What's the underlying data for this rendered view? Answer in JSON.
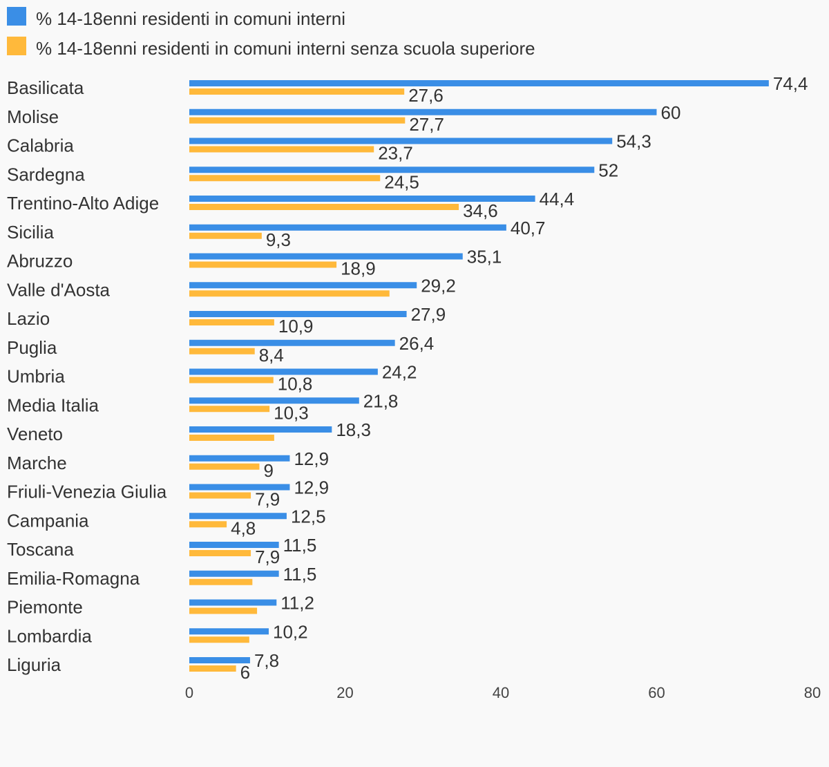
{
  "chart_data": {
    "type": "bar",
    "orientation": "horizontal",
    "xlim": [
      0,
      80
    ],
    "x_ticks": [
      "0",
      "20",
      "40",
      "60",
      "80"
    ],
    "grid": false,
    "legend_position": "top-left",
    "categories": [
      "Basilicata",
      "Molise",
      "Calabria",
      "Sardegna",
      "Trentino-Alto Adige",
      "Sicilia",
      "Abruzzo",
      "Valle d'Aosta",
      "Lazio",
      "Puglia",
      "Umbria",
      "Media Italia",
      "Veneto",
      "Marche",
      "Friuli-Venezia Giulia",
      "Campania",
      "Toscana",
      "Emilia-Romagna",
      "Piemonte",
      "Lombardia",
      "Liguria"
    ],
    "series": [
      {
        "name": "% 14-18enni residenti in comuni interni",
        "color": "#3a8ee6",
        "values": [
          74.4,
          60,
          54.3,
          52,
          44.4,
          40.7,
          35.1,
          29.2,
          27.9,
          26.4,
          24.2,
          21.8,
          18.3,
          12.9,
          12.9,
          12.5,
          11.5,
          11.5,
          11.2,
          10.2,
          7.8
        ],
        "labels": [
          "74,4",
          "60",
          "54,3",
          "52",
          "44,4",
          "40,7",
          "35,1",
          "29,2",
          "27,9",
          "26,4",
          "24,2",
          "21,8",
          "18,3",
          "12,9",
          "12,9",
          "12,5",
          "11,5",
          "11,5",
          "11,2",
          "10,2",
          "7,8"
        ]
      },
      {
        "name": "% 14-18enni residenti in comuni interni senza scuola superiore",
        "color": "#ffb93b",
        "values": [
          27.6,
          27.7,
          23.7,
          24.5,
          34.6,
          9.3,
          18.9,
          25.7,
          10.9,
          8.4,
          10.8,
          10.3,
          10.9,
          9,
          7.9,
          4.8,
          7.9,
          8.1,
          8.7,
          7.7,
          6
        ],
        "labels": [
          "27,6",
          "27,7",
          "23,7",
          "24,5",
          "34,6",
          "9,3",
          "18,9",
          "",
          "10,9",
          "8,4",
          "10,8",
          "10,3",
          "",
          "9",
          "7,9",
          "4,8",
          "7,9",
          "",
          "",
          "",
          "6"
        ]
      }
    ]
  }
}
